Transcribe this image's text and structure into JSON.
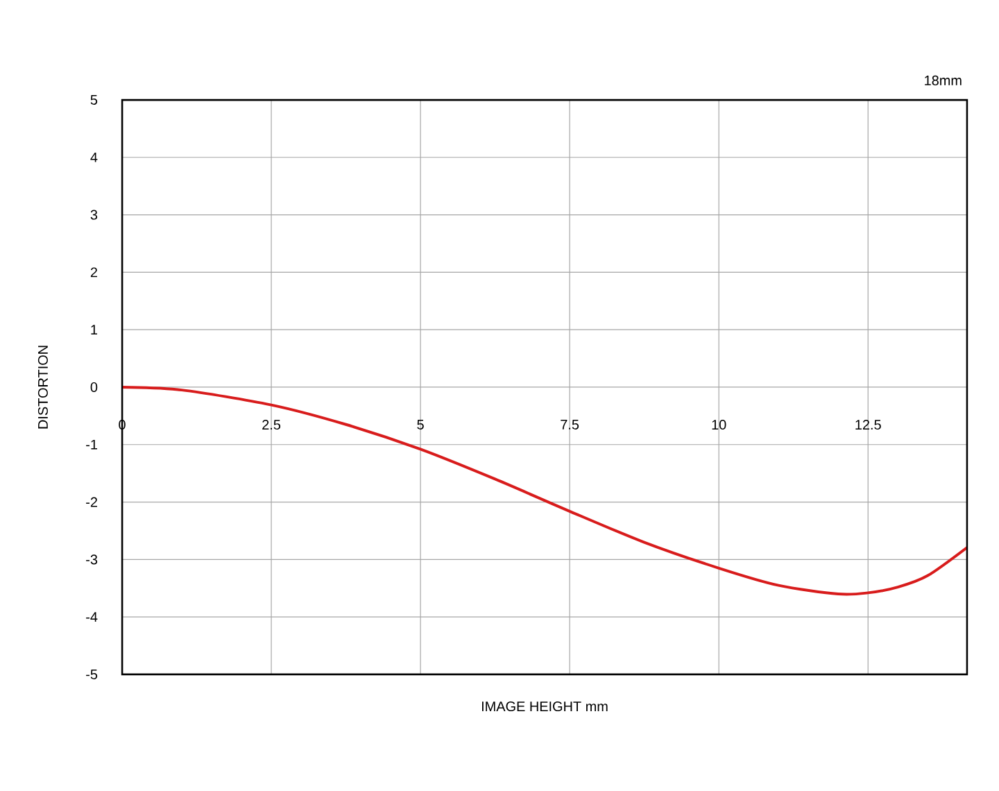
{
  "chart_data": {
    "type": "line",
    "title": "18mm",
    "xlabel": "IMAGE HEIGHT   mm",
    "ylabel": "DISTORTION",
    "x": [
      0,
      1,
      2.5,
      3.75,
      5,
      6.25,
      7.5,
      8.75,
      10,
      11,
      12,
      12.5,
      13,
      13.5,
      14.16
    ],
    "series": [
      {
        "color": "#d81c1c",
        "values": [
          0,
          -0.05,
          -0.31,
          -0.65,
          -1.08,
          -1.6,
          -2.16,
          -2.7,
          -3.15,
          -3.45,
          -3.6,
          -3.58,
          -3.48,
          -3.28,
          -2.79
        ]
      }
    ],
    "xlim": [
      0,
      14.16
    ],
    "ylim": [
      -5,
      5
    ],
    "xticks": [
      0,
      2.5,
      5,
      7.5,
      10,
      12.5
    ],
    "yticks": [
      -5,
      -4,
      -3,
      -2,
      -1,
      0,
      1,
      2,
      3,
      4,
      5
    ],
    "grid": true
  }
}
